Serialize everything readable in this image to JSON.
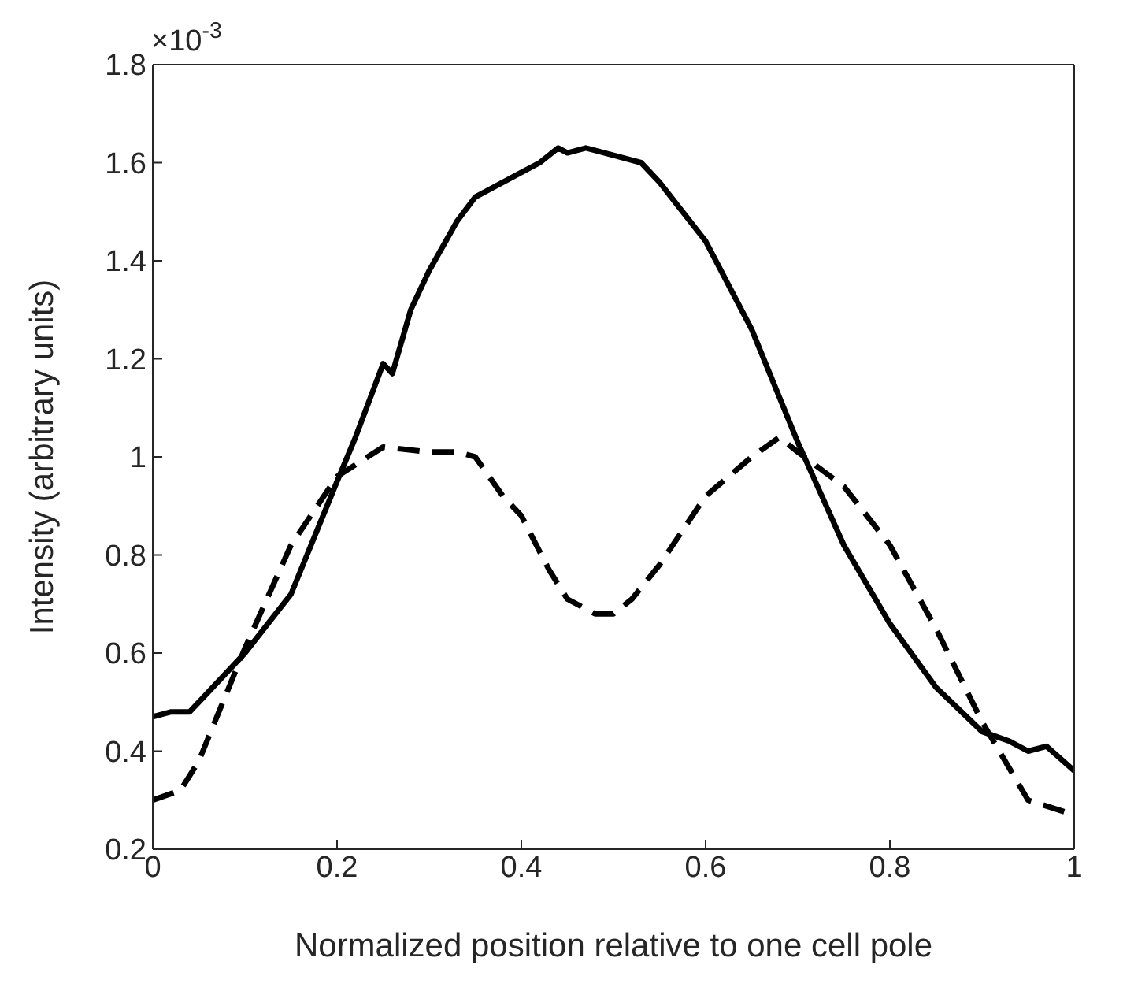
{
  "chart_data": {
    "type": "line",
    "xlabel": "Normalized position relative to one cell pole",
    "ylabel": "Intensity (arbitrary units)",
    "annotations": [
      "×10$^{-3}$"
    ],
    "xlim": [
      0,
      1
    ],
    "xticks": [
      0,
      0.2,
      0.4,
      0.6,
      0.8,
      1
    ],
    "ylim": [
      0.2,
      1.8
    ],
    "yticks": [
      0.2,
      0.4,
      0.6,
      0.8,
      1,
      1.2,
      1.4,
      1.6,
      1.8
    ],
    "series": [
      {
        "color": "#000000",
        "line_style": "solid",
        "x": [
          0,
          0.02,
          0.04,
          0.05,
          0.1,
          0.15,
          0.2,
          0.22,
          0.25,
          0.26,
          0.28,
          0.3,
          0.33,
          0.35,
          0.38,
          0.4,
          0.42,
          0.44,
          0.45,
          0.47,
          0.5,
          0.53,
          0.55,
          0.6,
          0.65,
          0.7,
          0.75,
          0.8,
          0.85,
          0.9,
          0.93,
          0.95,
          0.97,
          1
        ],
        "values": [
          0.47,
          0.48,
          0.48,
          0.5,
          0.6,
          0.72,
          0.95,
          1.04,
          1.19,
          1.17,
          1.3,
          1.38,
          1.48,
          1.53,
          1.56,
          1.58,
          1.6,
          1.63,
          1.62,
          1.63,
          1.615,
          1.6,
          1.56,
          1.44,
          1.26,
          1.03,
          0.82,
          0.66,
          0.53,
          0.44,
          0.42,
          0.4,
          0.41,
          0.36
        ]
      },
      {
        "color": "#000000",
        "line_style": "dashed",
        "x": [
          0,
          0.03,
          0.05,
          0.1,
          0.15,
          0.2,
          0.25,
          0.3,
          0.33,
          0.35,
          0.38,
          0.4,
          0.43,
          0.45,
          0.48,
          0.5,
          0.52,
          0.55,
          0.6,
          0.65,
          0.68,
          0.7,
          0.75,
          0.8,
          0.85,
          0.9,
          0.95,
          1
        ],
        "values": [
          0.3,
          0.32,
          0.38,
          0.61,
          0.82,
          0.96,
          1.02,
          1.01,
          1.01,
          1,
          0.92,
          0.88,
          0.77,
          0.71,
          0.68,
          0.68,
          0.71,
          0.78,
          0.92,
          1,
          1.04,
          1.01,
          0.94,
          0.82,
          0.65,
          0.46,
          0.3,
          0.27
        ]
      }
    ]
  }
}
